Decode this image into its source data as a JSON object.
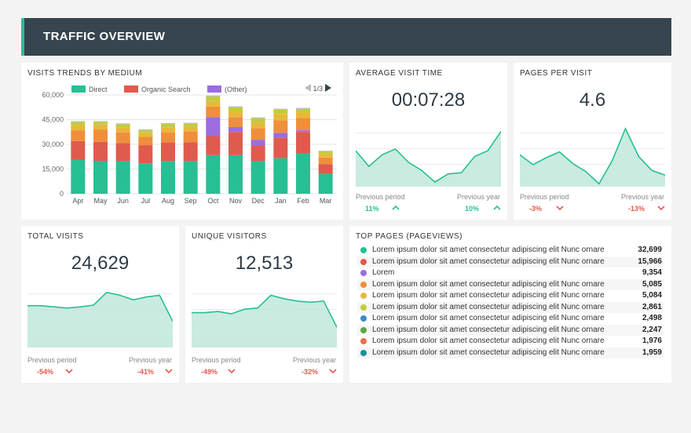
{
  "header": {
    "title": "TRAFFIC OVERVIEW"
  },
  "colors": {
    "accent": "#27bf94",
    "header_bg": "#36454f",
    "direct": "#27bf94",
    "organic": "#e05a4e",
    "other": "#9b6ddf",
    "orange": "#ef8f3b",
    "yellow": "#e6b93a",
    "olive": "#c2cc3a",
    "up": "#27bf94",
    "down": "#e05a4e"
  },
  "trends": {
    "title": "VISITS TRENDS BY MEDIUM",
    "legend": [
      {
        "label": "Direct",
        "color": "#27bf94"
      },
      {
        "label": "Organic Search",
        "color": "#e05a4e"
      },
      {
        "label": "(Other)",
        "color": "#9b6ddf"
      }
    ],
    "pager": "1/3",
    "pager_prev_icon": "triangle-left-icon",
    "pager_next_icon": "triangle-right-icon"
  },
  "chart_data": {
    "type": "bar",
    "stacked": true,
    "categories": [
      "Apr",
      "May",
      "Jun",
      "Jul",
      "Aug",
      "Sep",
      "Oct",
      "Nov",
      "Dec",
      "Jan",
      "Feb",
      "Mar"
    ],
    "yticks": [
      "0",
      "15,000",
      "30,000",
      "45,000",
      "60,000"
    ],
    "ylim": [
      0,
      60000
    ],
    "series": [
      {
        "name": "Direct",
        "color": "#27bf94",
        "values": [
          20500,
          20000,
          19800,
          18500,
          19800,
          19800,
          23500,
          23500,
          19800,
          21500,
          24500,
          12000
        ]
      },
      {
        "name": "Organic Search",
        "color": "#e05a4e",
        "values": [
          11500,
          11500,
          11000,
          11000,
          11500,
          11500,
          11500,
          14000,
          9500,
          12500,
          13000,
          6000
        ]
      },
      {
        "name": "(Other)",
        "color": "#9b6ddf",
        "values": [
          0,
          0,
          0,
          0,
          0,
          0,
          11500,
          3000,
          3500,
          3000,
          1000,
          0
        ]
      },
      {
        "name": "",
        "color": "#ef8f3b",
        "values": [
          6500,
          7500,
          6500,
          5000,
          6000,
          6500,
          6500,
          6000,
          7000,
          7500,
          7500,
          4000
        ]
      },
      {
        "name": "",
        "color": "#e6b93a",
        "values": [
          3000,
          3000,
          3000,
          2500,
          3000,
          3000,
          3500,
          3500,
          3500,
          4000,
          3500,
          2000
        ]
      },
      {
        "name": "",
        "color": "#c2cc3a",
        "values": [
          2000,
          1500,
          1800,
          1500,
          2000,
          1700,
          2500,
          2500,
          2500,
          2500,
          2000,
          1500
        ]
      },
      {
        "name": "",
        "color": "#bbbbbb",
        "values": [
          600,
          600,
          600,
          600,
          600,
          600,
          600,
          600,
          600,
          600,
          600,
          600
        ]
      }
    ]
  },
  "avg_visit": {
    "title": "AVERAGE VISIT TIME",
    "value": "00:07:28",
    "prev_period_label": "Previous period",
    "prev_period_pct": "11%",
    "prev_period_dir": "up",
    "prev_year_label": "Previous year",
    "prev_year_pct": "10%",
    "prev_year_dir": "up",
    "spark": [
      0.62,
      0.35,
      0.55,
      0.65,
      0.42,
      0.28,
      0.08,
      0.22,
      0.24,
      0.52,
      0.62,
      0.95
    ]
  },
  "pages_per_visit": {
    "title": "PAGES PER VISIT",
    "value": "4.6",
    "prev_period_label": "Previous period",
    "prev_period_pct": "-3%",
    "prev_period_dir": "down",
    "prev_year_label": "Previous year",
    "prev_year_pct": "-13%",
    "prev_year_dir": "down",
    "spark": [
      0.55,
      0.38,
      0.5,
      0.6,
      0.4,
      0.26,
      0.05,
      0.45,
      1.0,
      0.52,
      0.28,
      0.2
    ]
  },
  "total_visits": {
    "title": "TOTAL VISITS",
    "value": "24,629",
    "prev_period_label": "Previous period",
    "prev_period_pct": "-54%",
    "prev_period_dir": "down",
    "prev_year_label": "Previous year",
    "prev_year_pct": "-41%",
    "prev_year_dir": "down",
    "spark": [
      0.72,
      0.72,
      0.7,
      0.68,
      0.7,
      0.73,
      0.95,
      0.9,
      0.82,
      0.87,
      0.9,
      0.45
    ]
  },
  "unique_visitors": {
    "title": "UNIQUE VISITORS",
    "value": "12,513",
    "prev_period_label": "Previous period",
    "prev_period_pct": "-49%",
    "prev_period_dir": "down",
    "prev_year_label": "Previous year",
    "prev_year_pct": "-32%",
    "prev_year_dir": "down",
    "spark": [
      0.6,
      0.6,
      0.62,
      0.58,
      0.66,
      0.68,
      0.9,
      0.84,
      0.8,
      0.78,
      0.8,
      0.35
    ]
  },
  "top_pages": {
    "title": "TOP PAGES (PAGEVIEWS)",
    "rows": [
      {
        "name": "Lorem ipsum dolor sit amet consectetur adipiscing elit Nunc ornare",
        "value": "32,699",
        "color": "#27bf94"
      },
      {
        "name": "Lorem ipsum dolor sit amet consectetur adipiscing elit Nunc ornare",
        "value": "15,966",
        "color": "#e05a4e"
      },
      {
        "name": "Lorem",
        "value": "9,354",
        "color": "#9b6ddf"
      },
      {
        "name": "Lorem ipsum dolor sit amet consectetur adipiscing elit Nunc ornare",
        "value": "5,085",
        "color": "#ef8f3b"
      },
      {
        "name": "Lorem ipsum dolor sit amet consectetur adipiscing elit Nunc ornare",
        "value": "5,084",
        "color": "#e6b93a"
      },
      {
        "name": "Lorem ipsum dolor sit amet consectetur adipiscing elit Nunc ornare",
        "value": "2,861",
        "color": "#c2cc3a"
      },
      {
        "name": "Lorem ipsum dolor sit amet consectetur adipiscing elit Nunc ornare",
        "value": "2,498",
        "color": "#3b8ac7"
      },
      {
        "name": "Lorem ipsum dolor sit amet consectetur adipiscing elit Nunc ornare",
        "value": "2,247",
        "color": "#5aa64b"
      },
      {
        "name": "Lorem ipsum dolor sit amet consectetur adipiscing elit Nunc ornare",
        "value": "1,976",
        "color": "#e8704a"
      },
      {
        "name": "Lorem ipsum dolor sit amet consectetur adipiscing elit Nunc ornare",
        "value": "1,959",
        "color": "#17929a"
      }
    ]
  }
}
